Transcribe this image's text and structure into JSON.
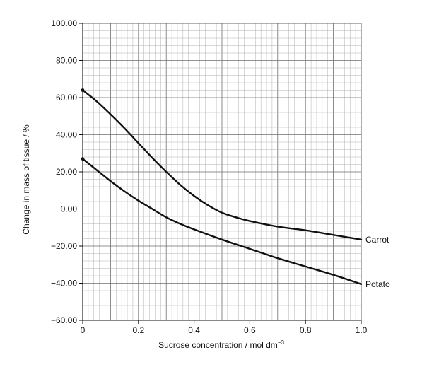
{
  "chart_data": {
    "type": "line",
    "xlabel": "Sucrose concentration / mol dm",
    "xlabel_superscript": "−3",
    "ylabel": "Change in mass of tissue / %",
    "xlim": [
      0,
      1.0
    ],
    "ylim": [
      -60,
      100
    ],
    "x_ticks": [
      "0",
      "0.2",
      "0.4",
      "0.6",
      "0.8",
      "1.0"
    ],
    "x_tick_values": [
      0,
      0.2,
      0.4,
      0.6,
      0.8,
      1.0
    ],
    "y_ticks": [
      "100.00",
      "80.00",
      "60.00",
      "40.00",
      "20.00",
      "0.00",
      "−20.00",
      "−40.00",
      "−60.00"
    ],
    "y_tick_values": [
      100,
      80,
      60,
      40,
      20,
      0,
      -20,
      -40,
      -60
    ],
    "grid": true,
    "series": [
      {
        "name": "Carrot",
        "x": [
          0,
          0.05,
          0.1,
          0.15,
          0.2,
          0.25,
          0.3,
          0.35,
          0.4,
          0.45,
          0.5,
          0.55,
          0.6,
          0.7,
          0.8,
          0.9,
          1.0
        ],
        "y": [
          64,
          58,
          51,
          43.5,
          35.5,
          27.5,
          20,
          13,
          7,
          2,
          -2,
          -4.5,
          -6.5,
          -9.5,
          -11.5,
          -14,
          -16.5
        ]
      },
      {
        "name": "Potato",
        "x": [
          0,
          0.05,
          0.1,
          0.15,
          0.2,
          0.25,
          0.3,
          0.35,
          0.4,
          0.5,
          0.6,
          0.7,
          0.8,
          0.9,
          1.0
        ],
        "y": [
          27,
          21,
          15,
          9.5,
          4.5,
          0,
          -4.5,
          -8,
          -11,
          -16.5,
          -21.5,
          -26.5,
          -31,
          -35.5,
          -40.5
        ]
      }
    ]
  }
}
